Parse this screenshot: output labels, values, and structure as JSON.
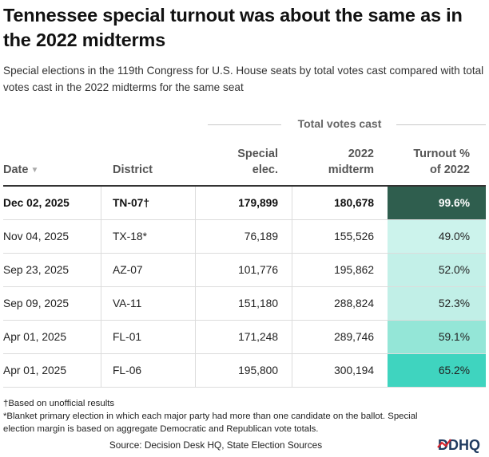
{
  "title": "Tennessee special turnout was about the same as in the 2022 midterms",
  "subtitle": "Special elections in the 119th Congress for U.S. House seats by total votes cast compared with total votes cast in the 2022 midterms for the same seat",
  "group_header": "Total votes cast",
  "columns": {
    "date": "Date",
    "district": "District",
    "special_line1": "Special",
    "special_line2": "elec.",
    "midterm_line1": "2022",
    "midterm_line2": "midterm",
    "turnout_line1": "Turnout %",
    "turnout_line2": "of 2022"
  },
  "sort_icon": "sort-down-triangle",
  "rows": [
    {
      "date": "Dec 02, 2025",
      "district": "TN-07†",
      "special": "179,899",
      "midterm": "180,678",
      "turnout": "99.6%",
      "color": "#2f5e4e",
      "text_color": "#ffffff",
      "bold": true
    },
    {
      "date": "Nov 04, 2025",
      "district": "TX-18*",
      "special": "76,189",
      "midterm": "155,526",
      "turnout": "49.0%",
      "color": "#ccf3ec",
      "text_color": "#222222",
      "bold": false
    },
    {
      "date": "Sep 23, 2025",
      "district": "AZ-07",
      "special": "101,776",
      "midterm": "195,862",
      "turnout": "52.0%",
      "color": "#c3f0e8",
      "text_color": "#222222",
      "bold": false
    },
    {
      "date": "Sep 09, 2025",
      "district": "VA-11",
      "special": "151,180",
      "midterm": "288,824",
      "turnout": "52.3%",
      "color": "#c1efe7",
      "text_color": "#222222",
      "bold": false
    },
    {
      "date": "Apr 01, 2025",
      "district": "FL-01",
      "special": "171,248",
      "midterm": "289,746",
      "turnout": "59.1%",
      "color": "#94e6d7",
      "text_color": "#222222",
      "bold": false
    },
    {
      "date": "Apr 01, 2025",
      "district": "FL-06",
      "special": "195,800",
      "midterm": "300,194",
      "turnout": "65.2%",
      "color": "#3fd4bf",
      "text_color": "#222222",
      "bold": false
    }
  ],
  "footnotes": {
    "dagger": "†Based on unofficial results",
    "asterisk": "*Blanket primary election in which each major party had more than one candidate on the ballot. Special election margin is based on aggregate Democratic and Republican vote totals."
  },
  "source": "Source: Decision Desk HQ, State Election Sources",
  "logo_text": "DDHQ",
  "chart_data": {
    "type": "table",
    "title": "Tennessee special turnout was about the same as in the 2022 midterms",
    "columns": [
      "Date",
      "District",
      "Special elec.",
      "2022 midterm",
      "Turnout % of 2022"
    ],
    "rows": [
      [
        "Dec 02, 2025",
        "TN-07†",
        179899,
        180678,
        99.6
      ],
      [
        "Nov 04, 2025",
        "TX-18*",
        76189,
        155526,
        49.0
      ],
      [
        "Sep 23, 2025",
        "AZ-07",
        101776,
        195862,
        52.0
      ],
      [
        "Sep 09, 2025",
        "VA-11",
        151180,
        288824,
        52.3
      ],
      [
        "Apr 01, 2025",
        "FL-01",
        171248,
        289746,
        59.1
      ],
      [
        "Apr 01, 2025",
        "FL-06",
        195800,
        300194,
        65.2
      ]
    ]
  }
}
